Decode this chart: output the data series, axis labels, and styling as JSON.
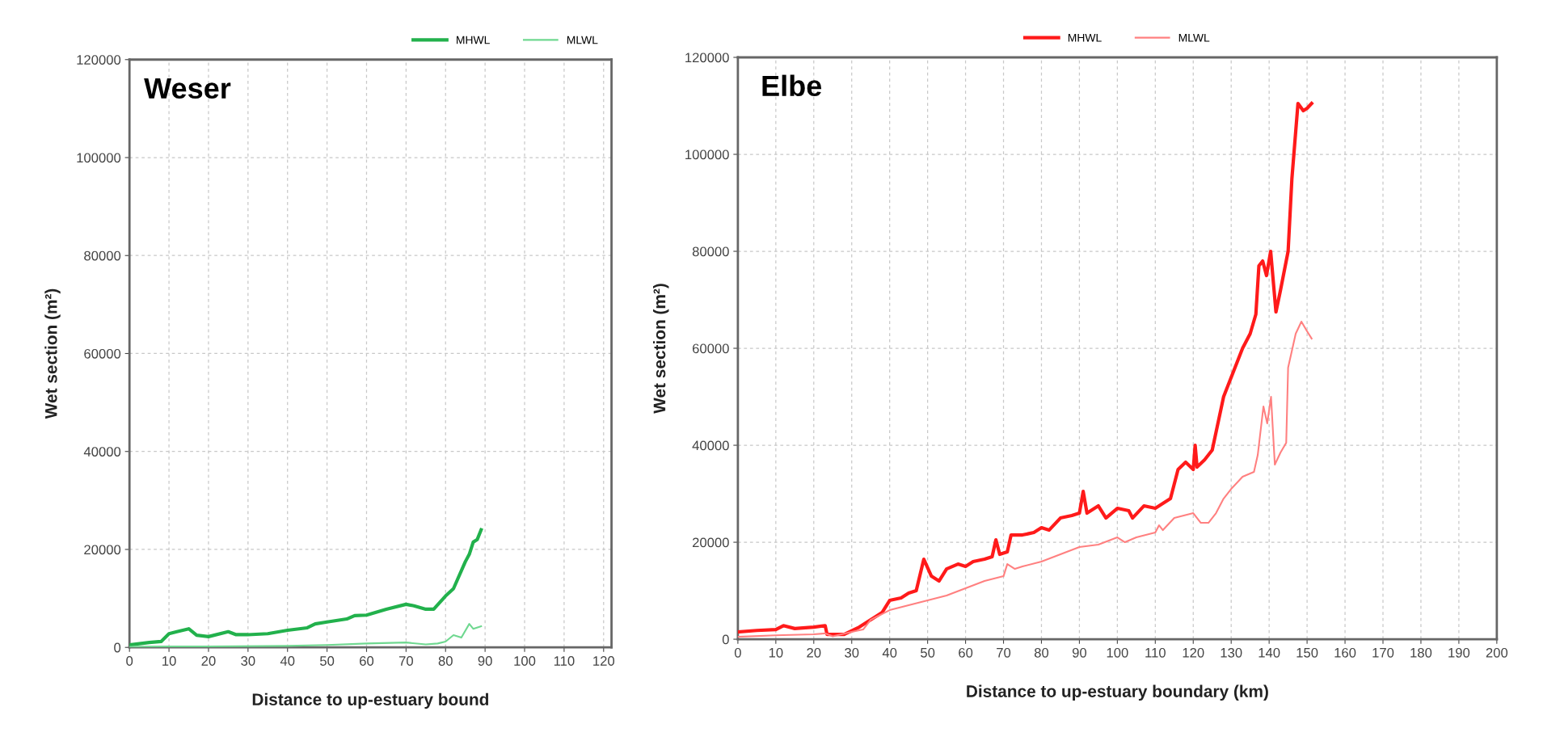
{
  "chart_data": [
    {
      "type": "line",
      "title": "Weser",
      "xlabel": "Distance to up-estuary bound",
      "ylabel": "Wet section (m²)",
      "xlim": [
        0,
        122
      ],
      "xticks": [
        0,
        10,
        20,
        30,
        40,
        50,
        60,
        70,
        80,
        90,
        100,
        110,
        120
      ],
      "ylim": [
        0,
        120000
      ],
      "yticks": [
        0,
        20000,
        40000,
        60000,
        80000,
        100000,
        120000
      ],
      "grid": true,
      "legend": "top right",
      "series": [
        {
          "name": "MHWL",
          "color": "#22b14c",
          "x": [
            0,
            5,
            8,
            10,
            12,
            15,
            17,
            20,
            25,
            27,
            30,
            35,
            40,
            45,
            47,
            50,
            55,
            57,
            60,
            65,
            70,
            72,
            75,
            77,
            80,
            82,
            85,
            86,
            87,
            88,
            89
          ],
          "values": [
            500,
            1000,
            1200,
            2800,
            3200,
            3800,
            2500,
            2200,
            3200,
            2600,
            2600,
            2800,
            3500,
            4000,
            4800,
            5200,
            5800,
            6500,
            6600,
            7800,
            8800,
            8500,
            7800,
            7800,
            10500,
            12000,
            17500,
            19000,
            21500,
            22000,
            24000
          ]
        },
        {
          "name": "MLWL",
          "color": "#6fd890",
          "x": [
            0,
            10,
            20,
            40,
            50,
            60,
            70,
            75,
            78,
            80,
            82,
            84,
            86,
            87,
            89
          ],
          "values": [
            100,
            200,
            200,
            300,
            500,
            800,
            1000,
            600,
            800,
            1200,
            2500,
            2000,
            4800,
            3800,
            4300
          ]
        }
      ]
    },
    {
      "type": "line",
      "title": "Elbe",
      "xlabel": "Distance to up-estuary boundary (km)",
      "ylabel": "Wet section (m²)",
      "xlim": [
        0,
        200
      ],
      "xticks": [
        0,
        10,
        20,
        30,
        40,
        50,
        60,
        70,
        80,
        90,
        100,
        110,
        120,
        130,
        140,
        150,
        160,
        170,
        180,
        190,
        200
      ],
      "ylim": [
        0,
        120000
      ],
      "yticks": [
        0,
        20000,
        40000,
        60000,
        80000,
        100000,
        120000
      ],
      "grid": true,
      "legend": "top",
      "series": [
        {
          "name": "MHWL",
          "color": "#ff1a1a",
          "x": [
            0,
            5,
            10,
            12,
            15,
            20,
            23,
            23.5,
            28,
            32,
            35,
            38,
            40,
            43,
            45,
            47,
            49,
            51,
            53,
            55,
            58,
            60,
            62,
            65,
            67,
            68,
            69,
            71,
            72,
            75,
            78,
            80,
            82,
            85,
            88,
            90,
            91,
            92,
            95,
            97,
            100,
            103,
            104,
            107,
            110,
            112,
            114,
            116,
            118,
            120,
            120.5,
            121,
            123,
            125,
            128,
            131,
            133,
            135,
            136.5,
            137.3,
            138.3,
            139.3,
            140.4,
            141.8,
            143,
            145,
            146,
            147.6,
            149,
            150,
            151.2
          ],
          "values": [
            1500,
            1800,
            2000,
            2800,
            2200,
            2500,
            2800,
            1000,
            1000,
            2500,
            4000,
            5500,
            8000,
            8500,
            9500,
            10000,
            16500,
            13000,
            12000,
            14500,
            15500,
            15000,
            16000,
            16500,
            17000,
            20500,
            17500,
            18000,
            21500,
            21500,
            22000,
            23000,
            22500,
            25000,
            25500,
            26000,
            30500,
            26000,
            27500,
            25000,
            27000,
            26500,
            25000,
            27500,
            27000,
            28000,
            29000,
            35000,
            36500,
            35000,
            40000,
            35500,
            37000,
            39000,
            50000,
            56000,
            60000,
            63000,
            67000,
            77000,
            78000,
            75000,
            80000,
            67500,
            72000,
            80000,
            95000,
            110500,
            109000,
            109500,
            110500
          ]
        },
        {
          "name": "MLWL",
          "color": "#ff8080",
          "x": [
            0,
            10,
            20,
            23,
            25,
            30,
            33,
            35,
            40,
            45,
            50,
            55,
            60,
            65,
            70,
            71,
            73,
            75,
            80,
            85,
            90,
            95,
            100,
            102,
            105,
            110,
            111,
            112,
            115,
            120,
            122,
            124,
            126,
            128,
            130,
            133,
            136,
            137,
            138.5,
            139.5,
            140.5,
            141.5,
            143,
            144.5,
            145,
            147,
            148.5,
            150,
            151.2
          ],
          "values": [
            500,
            800,
            1000,
            1200,
            600,
            1500,
            2000,
            4000,
            6000,
            7000,
            8000,
            9000,
            10500,
            12000,
            13000,
            15500,
            14500,
            15000,
            16000,
            17500,
            19000,
            19500,
            21000,
            20000,
            21000,
            22000,
            23500,
            22500,
            25000,
            26000,
            24000,
            24000,
            26000,
            29000,
            31000,
            33500,
            34500,
            38000,
            48000,
            44500,
            50000,
            36000,
            38500,
            40500,
            56000,
            63000,
            65500,
            63500,
            62000
          ]
        }
      ]
    }
  ]
}
